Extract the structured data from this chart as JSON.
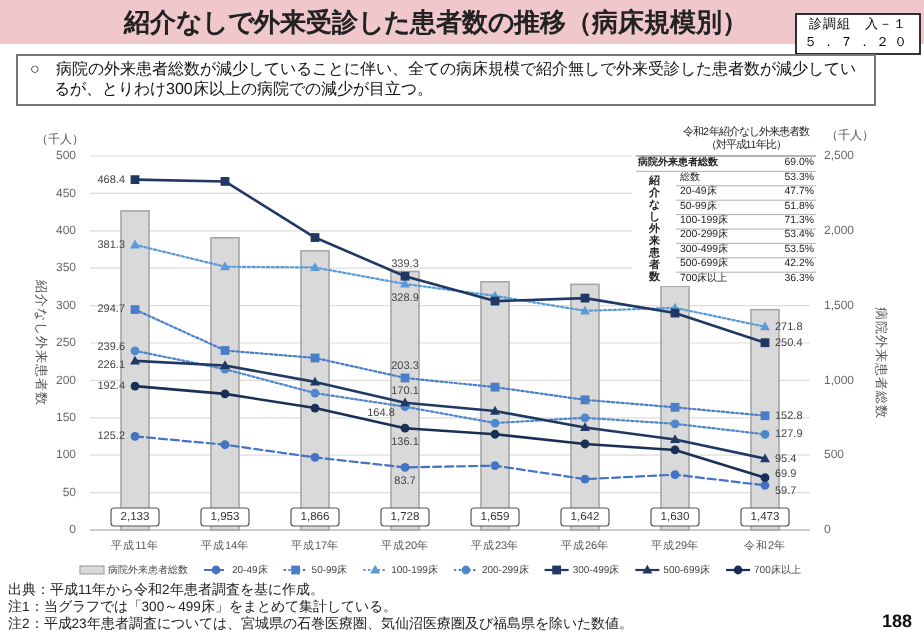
{
  "chart_data": {
    "type": "line",
    "title": "紹介なしで外来受診した患者数の推移（病床規模別）",
    "subtitle": "○　病院の外来患者総数が減少していることに伴い、全ての病床規模で紹介無しで外来受診した患者数が減少しているが、とりわけ300床以上の病院での減少が目立つ。",
    "ylabel": "紹介なし外来患者数",
    "y2label": "病院外来患者総数",
    "annotations": [
      "診調組　入－１",
      "５．７．２０",
      "（千人）",
      "（千人）",
      "令和2年紹介なし外来患者数",
      "（対平成11年比）",
      "病院外来患者総数",
      "69.0%",
      "総数",
      "53.3%",
      "20-49床",
      "47.7%",
      "50-99床",
      "51.8%",
      "100-199床",
      "71.3%",
      "200-299床",
      "53.4%",
      "300-499床",
      "53.5%",
      "500-699床",
      "42.2%",
      "700床以上",
      "36.3%",
      "紹介なし外来患者数",
      "出典：平成11年から令和2年患者調査を基に作成。",
      "注1：当グラフでは「300～499床」をまとめて集計している。",
      "注2：平成23年患者調査については、宮城県の石巻医療圏、気仙沼医療圏及び福島県を除いた数値。",
      "188"
    ],
    "categories": [
      "平成11年",
      "平成14年",
      "平成17年",
      "平成20年",
      "平成23年",
      "平成26年",
      "平成29年",
      "令和2年"
    ],
    "ylim": [
      0,
      500
    ],
    "yticks": [
      0,
      50,
      100,
      150,
      200,
      250,
      300,
      350,
      400,
      450,
      500
    ],
    "y2lim": [
      0,
      2500
    ],
    "y2ticks": [
      0,
      {
        "value": 500,
        "label": "500"
      },
      {
        "value": 1000,
        "label": "1,000"
      },
      {
        "value": 1500,
        "label": "1,500"
      },
      {
        "value": 2000,
        "label": "2,000"
      },
      {
        "value": 2500,
        "label": "2,500"
      }
    ],
    "grid": "y",
    "legend": "bottom",
    "series": [
      {
        "name": "病院外来患者総数",
        "type": "bar",
        "axis": "y2",
        "color": "#d9d9d9",
        "values": [
          2133,
          1953,
          1866,
          1728,
          1659,
          1642,
          1630,
          1473
        ],
        "value_labels": [
          "2,133",
          "1,953",
          "1,866",
          "1,728",
          "1,659",
          "1,642",
          "1,630",
          "1,473"
        ]
      },
      {
        "name": "20-49床",
        "color": "#4472c4",
        "marker": "circle",
        "line_style": "dashed",
        "values": [
          125.2,
          114,
          97,
          83.7,
          86,
          68,
          74,
          59.7
        ],
        "value_labels": [
          "125.2",
          null,
          null,
          "83.7",
          null,
          null,
          null,
          "59.7"
        ]
      },
      {
        "name": "50-99床",
        "color": "#4a7ec8",
        "marker": "square",
        "line_style": "dotted",
        "values": [
          294.7,
          240,
          230,
          203.3,
          191,
          174,
          164,
          152.8
        ],
        "value_labels": [
          "294.7",
          null,
          null,
          "203.3",
          null,
          null,
          null,
          "152.8"
        ]
      },
      {
        "name": "100-199床",
        "color": "#5b9bd5",
        "marker": "triangle",
        "line_style": "dotted",
        "values": [
          381.3,
          352,
          351,
          328.9,
          313,
          293,
          297,
          271.8
        ],
        "value_labels": [
          "381.3",
          null,
          null,
          "328.9",
          null,
          null,
          null,
          "271.8"
        ]
      },
      {
        "name": "200-299床",
        "color": "#4f86cc",
        "marker": "circle",
        "line_style": "dotted",
        "values": [
          239.6,
          215,
          183,
          164.8,
          143,
          150,
          142,
          127.9
        ],
        "value_labels": [
          "239.6",
          null,
          null,
          "164.8",
          null,
          null,
          null,
          "127.9"
        ]
      },
      {
        "name": "300-499床",
        "color": "#1f3864",
        "marker": "square",
        "line_style": "solid",
        "values": [
          468.4,
          466,
          391,
          339.3,
          306,
          310,
          290,
          250.4
        ],
        "value_labels": [
          "468.4",
          null,
          null,
          "339.3",
          null,
          null,
          null,
          "250.4"
        ]
      },
      {
        "name": "500-699床",
        "color": "#203864",
        "marker": "triangle",
        "line_style": "solid",
        "values": [
          226.1,
          220,
          198,
          170.1,
          159,
          137,
          121,
          95.4
        ],
        "value_labels": [
          "226.1",
          null,
          null,
          "170.1",
          null,
          null,
          null,
          "95.4"
        ]
      },
      {
        "name": "700床以上",
        "color": "#1a2f55",
        "marker": "circle",
        "line_style": "solid",
        "values": [
          192.4,
          182,
          163,
          136.1,
          128,
          115,
          107,
          69.9
        ],
        "value_labels": [
          "192.4",
          null,
          null,
          "136.1",
          null,
          null,
          null,
          "69.9"
        ]
      }
    ]
  }
}
